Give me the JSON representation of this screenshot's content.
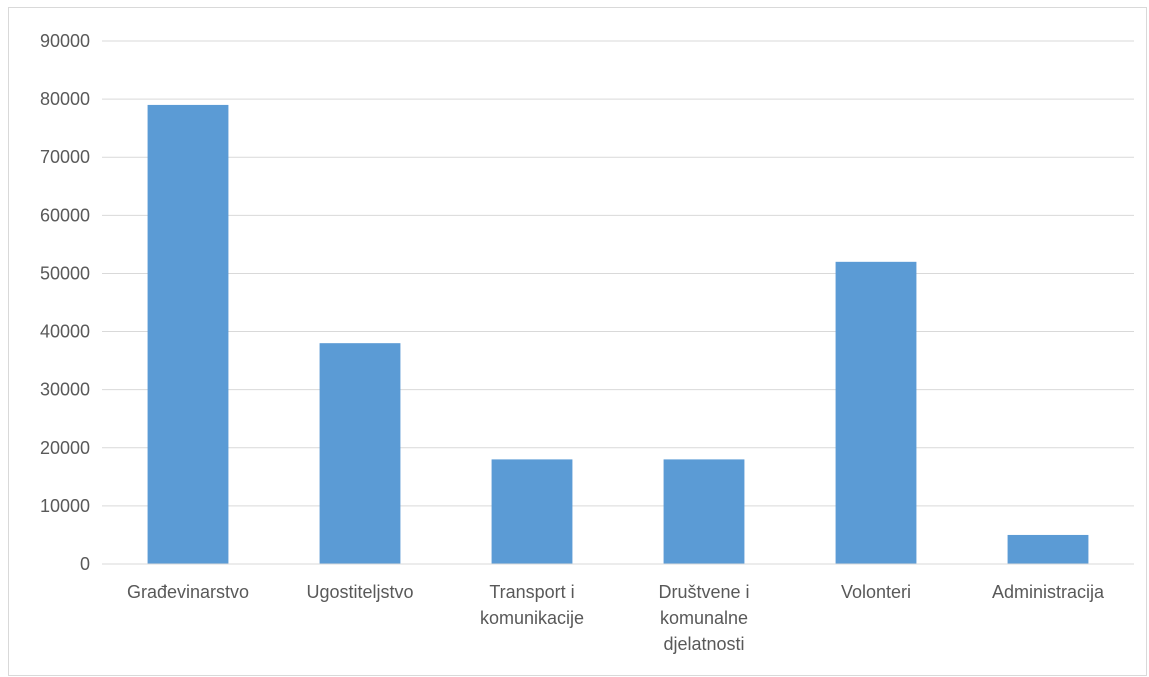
{
  "chart_data": {
    "type": "bar",
    "title": "",
    "xlabel": "",
    "ylabel": "",
    "categories": [
      "Građevinarstvo",
      "Ugostiteljstvo",
      "Transport i komunikacije",
      "Društvene i komunalne djelatnosti",
      "Volonteri",
      "Administracija"
    ],
    "category_label_lines": [
      [
        "Građevinarstvo"
      ],
      [
        "Ugostiteljstvo"
      ],
      [
        "Transport i",
        "komunikacije"
      ],
      [
        "Društvene i",
        "komunalne",
        "djelatnosti"
      ],
      [
        "Volonteri"
      ],
      [
        "Administracija"
      ]
    ],
    "values": [
      79000,
      38000,
      18000,
      18000,
      52000,
      5000
    ],
    "ylim": [
      0,
      90000
    ],
    "yticks": [
      0,
      10000,
      20000,
      30000,
      40000,
      50000,
      60000,
      70000,
      80000,
      90000
    ],
    "grid": true,
    "legend": "none",
    "bar_color": "#5b9bd5",
    "grid_color": "#d9d9d9",
    "axis_color": "#d9d9d9",
    "label_color": "#595959"
  }
}
